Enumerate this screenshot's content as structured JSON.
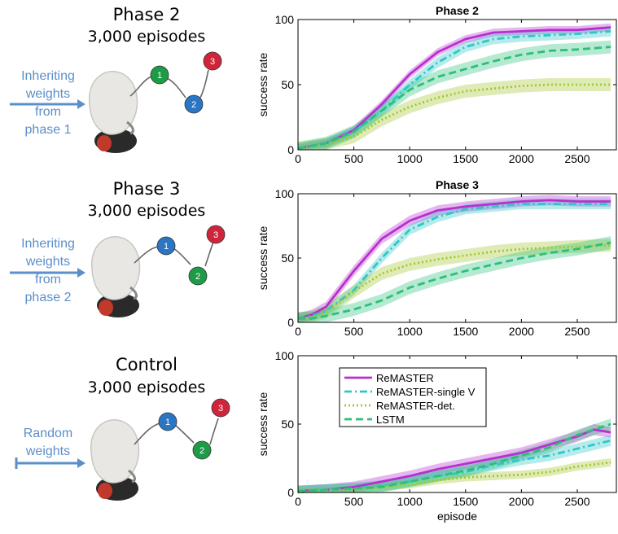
{
  "colors": {
    "remaster": "#b82fd0",
    "remaster_single_v": "#2ec6c8",
    "remaster_det": "#a3c72e",
    "lstm": "#2bc07a",
    "arrow_blue": "#5b8fc9",
    "node_green": "#1e9b46",
    "node_blue": "#2a76c4",
    "node_red": "#d0243a"
  },
  "left_panels": [
    {
      "title": "Phase 2",
      "subtitle": "3,000 episodes",
      "transfer_lines": [
        "Inheriting",
        "weights",
        "from",
        "phase 1"
      ],
      "arrow_style": "arrow",
      "nodes": [
        {
          "label": "1",
          "color": "node_green"
        },
        {
          "label": "2",
          "color": "node_blue"
        },
        {
          "label": "3",
          "color": "node_red"
        }
      ]
    },
    {
      "title": "Phase 3",
      "subtitle": "3,000 episodes",
      "transfer_lines": [
        "Inheriting",
        "weights",
        "from",
        "phase 2"
      ],
      "arrow_style": "arrow",
      "nodes": [
        {
          "label": "1",
          "color": "node_blue"
        },
        {
          "label": "2",
          "color": "node_green"
        },
        {
          "label": "3",
          "color": "node_red"
        }
      ]
    },
    {
      "title": "Control",
      "subtitle": "3,000 episodes",
      "transfer_lines": [
        "Random",
        "weights"
      ],
      "arrow_style": "bar-arrow",
      "nodes": [
        {
          "label": "1",
          "color": "node_blue"
        },
        {
          "label": "2",
          "color": "node_green"
        },
        {
          "label": "3",
          "color": "node_red"
        }
      ]
    }
  ],
  "chart_data": [
    {
      "type": "line",
      "title": "Phase 2",
      "xlabel": "",
      "ylabel": "success rate",
      "xlim": [
        0,
        2850
      ],
      "ylim": [
        0,
        100
      ],
      "xticks": [
        0,
        500,
        1000,
        1500,
        2000,
        2500
      ],
      "yticks": [
        0,
        50,
        100
      ],
      "series": [
        {
          "key": "remaster",
          "style": "solid",
          "x": [
            0,
            250,
            500,
            750,
            1000,
            1250,
            1500,
            1750,
            2000,
            2250,
            2500,
            2800
          ],
          "y": [
            1,
            5,
            15,
            35,
            58,
            75,
            85,
            90,
            91,
            92,
            92,
            94
          ],
          "band": 3
        },
        {
          "key": "remaster_single_v",
          "style": "dashdot",
          "x": [
            0,
            250,
            500,
            750,
            1000,
            1250,
            1500,
            1750,
            2000,
            2250,
            2500,
            2800
          ],
          "y": [
            1,
            5,
            14,
            30,
            50,
            67,
            79,
            85,
            87,
            88,
            89,
            91
          ],
          "band": 4
        },
        {
          "key": "remaster_det",
          "style": "dotted",
          "x": [
            0,
            250,
            500,
            750,
            1000,
            1250,
            1500,
            1750,
            2000,
            2250,
            2500,
            2800
          ],
          "y": [
            1,
            4,
            10,
            23,
            33,
            40,
            45,
            47,
            49,
            50,
            50,
            50
          ],
          "band": 5
        },
        {
          "key": "lstm",
          "style": "dashed",
          "x": [
            0,
            250,
            500,
            750,
            1000,
            1250,
            1500,
            1750,
            2000,
            2250,
            2500,
            2800
          ],
          "y": [
            1,
            5,
            14,
            30,
            46,
            56,
            62,
            68,
            73,
            76,
            77,
            79
          ],
          "band": 5
        }
      ]
    },
    {
      "type": "line",
      "title": "Phase 3",
      "xlabel": "",
      "ylabel": "success rate",
      "xlim": [
        0,
        2850
      ],
      "ylim": [
        0,
        100
      ],
      "xticks": [
        0,
        500,
        1000,
        1500,
        2000,
        2500
      ],
      "yticks": [
        0,
        50,
        100
      ],
      "series": [
        {
          "key": "remaster",
          "style": "solid",
          "x": [
            0,
            125,
            250,
            500,
            750,
            1000,
            1250,
            1500,
            1750,
            2000,
            2250,
            2500,
            2800
          ],
          "y": [
            3,
            6,
            12,
            40,
            65,
            79,
            87,
            90,
            92,
            94,
            95,
            94,
            94
          ],
          "band": 4
        },
        {
          "key": "remaster_single_v",
          "style": "dashdot",
          "x": [
            0,
            125,
            250,
            500,
            750,
            1000,
            1250,
            1500,
            1750,
            2000,
            2250,
            2500,
            2800
          ],
          "y": [
            3,
            5,
            9,
            25,
            50,
            72,
            82,
            88,
            90,
            92,
            92,
            92,
            92
          ],
          "band": 4
        },
        {
          "key": "remaster_det",
          "style": "dotted",
          "x": [
            0,
            125,
            250,
            500,
            750,
            1000,
            1250,
            1500,
            1750,
            2000,
            2250,
            2500,
            2800
          ],
          "y": [
            3,
            4,
            8,
            24,
            38,
            45,
            49,
            52,
            55,
            57,
            58,
            59,
            60
          ],
          "band": 5
        },
        {
          "key": "lstm",
          "style": "dashed",
          "x": [
            0,
            125,
            250,
            500,
            750,
            1000,
            1250,
            1500,
            1750,
            2000,
            2250,
            2500,
            2800
          ],
          "y": [
            3,
            3,
            5,
            10,
            17,
            27,
            34,
            40,
            45,
            50,
            54,
            57,
            62
          ],
          "band": 5
        }
      ]
    },
    {
      "type": "line",
      "title": "",
      "xlabel": "episode",
      "ylabel": "success rate",
      "xlim": [
        0,
        2850
      ],
      "ylim": [
        0,
        100
      ],
      "xticks": [
        0,
        500,
        1000,
        1500,
        2000,
        2500
      ],
      "yticks": [
        0,
        50,
        100
      ],
      "legend": {
        "placement": "top-left",
        "entries": [
          {
            "key": "remaster",
            "label": "ReMASTER"
          },
          {
            "key": "remaster_single_v",
            "label": "ReMASTER-single V"
          },
          {
            "key": "remaster_det",
            "label": "ReMASTER-det."
          },
          {
            "key": "lstm",
            "label": "LSTM"
          }
        ]
      },
      "series": [
        {
          "key": "remaster",
          "style": "solid",
          "x": [
            0,
            250,
            500,
            750,
            1000,
            1250,
            1500,
            1750,
            2000,
            2250,
            2500,
            2650,
            2800
          ],
          "y": [
            1,
            2,
            4,
            8,
            12,
            17,
            21,
            25,
            29,
            35,
            41,
            46,
            44
          ],
          "band": 4
        },
        {
          "key": "remaster_single_v",
          "style": "dashdot",
          "x": [
            0,
            250,
            500,
            750,
            1000,
            1250,
            1500,
            1750,
            2000,
            2250,
            2500,
            2800
          ],
          "y": [
            1,
            2,
            3,
            5,
            8,
            12,
            15,
            20,
            24,
            27,
            32,
            38
          ],
          "band": 4
        },
        {
          "key": "remaster_det",
          "style": "dotted",
          "x": [
            0,
            250,
            500,
            750,
            1000,
            1250,
            1500,
            1750,
            2000,
            2250,
            2500,
            2800
          ],
          "y": [
            0,
            1,
            2,
            4,
            6,
            9,
            11,
            12,
            13,
            15,
            19,
            22
          ],
          "band": 3
        },
        {
          "key": "lstm",
          "style": "dashed",
          "x": [
            0,
            250,
            500,
            750,
            1000,
            1250,
            1500,
            1750,
            2000,
            2250,
            2500,
            2800
          ],
          "y": [
            1,
            2,
            3,
            4,
            8,
            12,
            16,
            21,
            27,
            33,
            42,
            50
          ],
          "band": 4
        }
      ]
    }
  ]
}
